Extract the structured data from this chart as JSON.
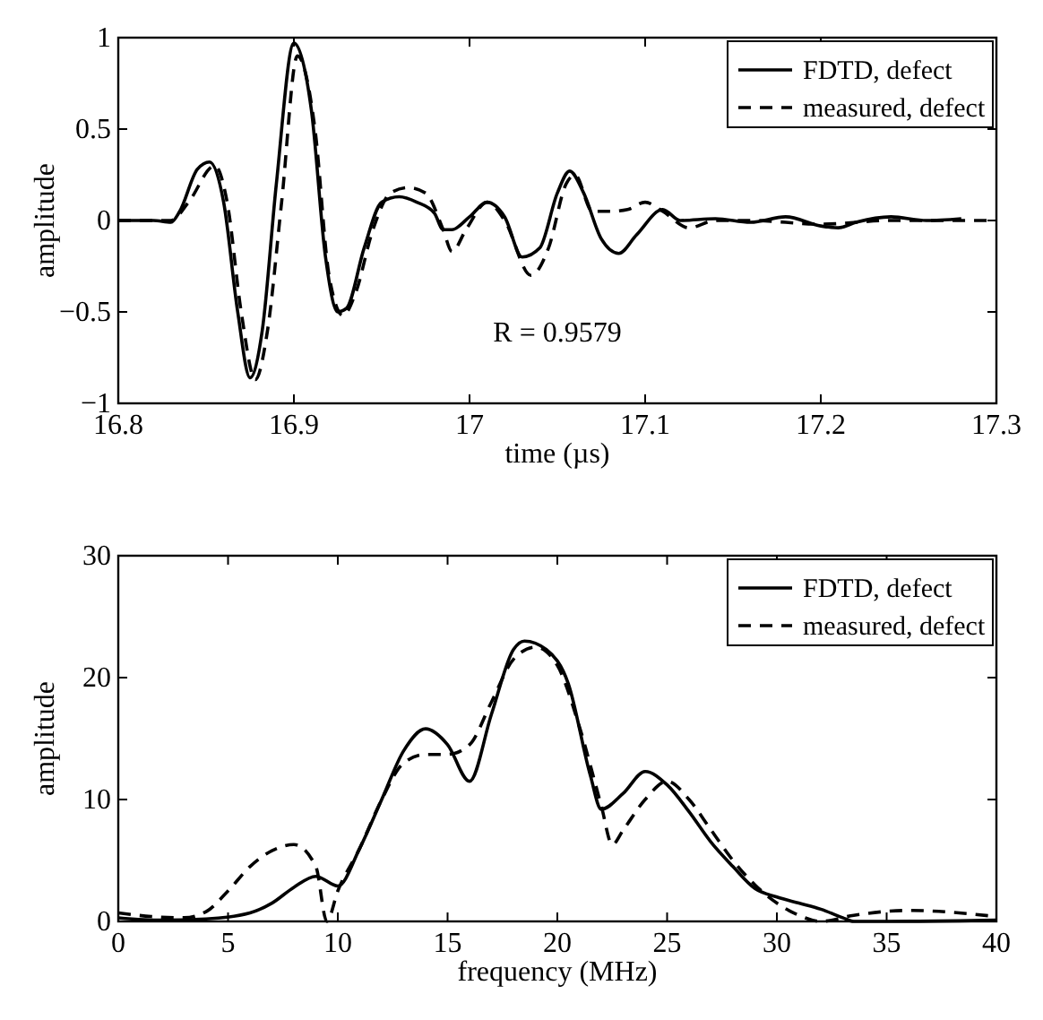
{
  "chart_data": [
    {
      "type": "line",
      "xlabel": "time (µs)",
      "ylabel": "amplitude",
      "xlim": [
        16.8,
        17.3
      ],
      "xticks": [
        16.8,
        16.9,
        17,
        17.1,
        17.2,
        17.3
      ],
      "ylim": [
        -1,
        1
      ],
      "yticks": [
        -1,
        -0.5,
        0,
        0.5,
        1
      ],
      "legend": "top right",
      "grid": false,
      "annotations": [
        "R = 0.9579"
      ],
      "series": [
        {
          "name": "FDTD, defect",
          "color": "#000000",
          "line_style": "solid",
          "x": [
            16.8,
            16.82,
            16.83,
            16.835,
            16.845,
            16.852,
            16.86,
            16.868,
            16.875,
            16.882,
            16.89,
            16.9,
            16.91,
            16.918,
            16.925,
            16.93,
            16.94,
            16.95,
            16.96,
            16.97,
            16.98,
            16.985,
            16.99,
            17.0,
            17.01,
            17.02,
            17.03,
            17.04,
            17.05,
            17.057,
            17.065,
            17.075,
            17.085,
            17.095,
            17.11,
            17.12,
            17.14,
            17.16,
            17.18,
            17.2,
            17.21,
            17.22,
            17.24,
            17.26,
            17.28
          ],
          "values": [
            0,
            0,
            -0.01,
            0.05,
            0.28,
            0.32,
            0.1,
            -0.5,
            -0.86,
            -0.6,
            0.2,
            0.97,
            0.6,
            -0.2,
            -0.5,
            -0.48,
            -0.15,
            0.1,
            0.13,
            0.1,
            0.04,
            -0.05,
            -0.05,
            0.02,
            0.1,
            0.02,
            -0.2,
            -0.15,
            0.15,
            0.27,
            0.15,
            -0.1,
            -0.18,
            -0.08,
            0.06,
            0,
            0.01,
            -0.01,
            0.02,
            -0.03,
            -0.04,
            -0.01,
            0.02,
            0,
            0.01
          ]
        },
        {
          "name": "measured, defect",
          "color": "#000000",
          "line_style": "dashed",
          "x": [
            16.8,
            16.83,
            16.84,
            16.855,
            16.862,
            16.87,
            16.878,
            16.885,
            16.893,
            16.902,
            16.912,
            16.92,
            16.928,
            16.935,
            16.945,
            16.955,
            16.965,
            16.975,
            16.985,
            16.99,
            16.998,
            17.01,
            17.02,
            17.035,
            17.045,
            17.055,
            17.06,
            17.07,
            17.08,
            17.09,
            17.1,
            17.11,
            17.125,
            17.14,
            17.16,
            17.2,
            17.24,
            17.3
          ],
          "values": [
            0,
            0,
            0.1,
            0.3,
            0.1,
            -0.5,
            -0.87,
            -0.6,
            0.1,
            0.9,
            0.5,
            -0.3,
            -0.52,
            -0.4,
            -0.05,
            0.15,
            0.18,
            0.15,
            -0.05,
            -0.17,
            -0.05,
            0.1,
            0,
            -0.3,
            -0.15,
            0.2,
            0.25,
            0.05,
            0.05,
            0.06,
            0.1,
            0.05,
            -0.04,
            0,
            0,
            -0.02,
            0,
            0
          ]
        }
      ]
    },
    {
      "type": "line",
      "xlabel": "frequency (MHz)",
      "ylabel": "amplitude",
      "xlim": [
        0,
        40
      ],
      "xticks": [
        0,
        5,
        10,
        15,
        20,
        25,
        30,
        35,
        40
      ],
      "ylim": [
        0,
        30
      ],
      "yticks": [
        0,
        10,
        20,
        30
      ],
      "legend": "top right",
      "grid": false,
      "series": [
        {
          "name": "FDTD, defect",
          "color": "#000000",
          "line_style": "solid",
          "x": [
            0,
            2,
            4,
            6,
            7,
            8,
            9,
            10,
            11,
            12,
            13,
            14,
            15,
            16,
            17,
            18,
            18.5,
            19.5,
            20.5,
            21.5,
            22,
            23,
            24,
            25,
            26,
            27,
            28,
            29,
            30,
            31,
            32,
            33,
            33.5,
            35,
            40
          ],
          "values": [
            0.3,
            0.1,
            0.2,
            0.7,
            1.5,
            2.8,
            3.7,
            2.9,
            6,
            10,
            14,
            15.8,
            14.5,
            11.5,
            17,
            22.3,
            23,
            22.3,
            19.5,
            12,
            9.2,
            10.5,
            12.3,
            11.2,
            9,
            6.5,
            4.5,
            2.7,
            2,
            1.5,
            1,
            0.3,
            0,
            0,
            0.1
          ]
        },
        {
          "name": "measured, defect",
          "color": "#000000",
          "line_style": "dashed",
          "x": [
            0,
            1.5,
            3,
            4,
            5,
            6,
            7,
            8,
            9,
            9.5,
            10,
            11,
            12,
            13,
            14,
            15,
            16,
            17,
            18,
            19,
            20,
            21,
            22,
            22.5,
            23,
            24,
            25,
            26,
            27,
            28,
            29,
            30,
            31,
            32,
            33.5,
            36,
            40
          ],
          "values": [
            0.7,
            0.4,
            0.3,
            0.8,
            2.5,
            4.5,
            5.8,
            6.3,
            4.5,
            0,
            2.5,
            6,
            10,
            13,
            13.7,
            13.7,
            14.5,
            18,
            21.5,
            22.5,
            21,
            16,
            9.5,
            6.3,
            7.5,
            10,
            11.5,
            10,
            7.5,
            5,
            3,
            1.5,
            0.5,
            0,
            0.5,
            0.9,
            0.4
          ]
        }
      ]
    }
  ]
}
